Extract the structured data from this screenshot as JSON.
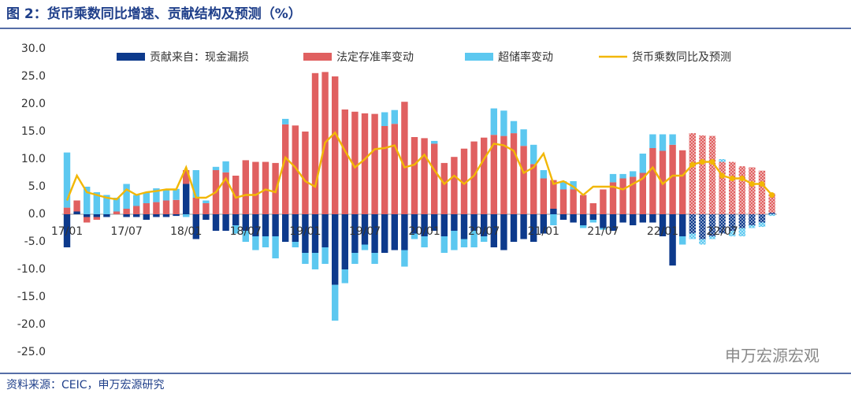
{
  "title": "图 2：货币乘数同比增速、贡献结构及预测（%）",
  "source": "资料来源：CEIC，申万宏源研究",
  "watermark": "申万宏源宏观",
  "chart_data": {
    "type": "bar",
    "categories": [
      "17/01",
      null,
      null,
      null,
      null,
      null,
      "17/07",
      null,
      null,
      null,
      null,
      null,
      "18/01",
      null,
      null,
      null,
      null,
      null,
      "18/07",
      null,
      null,
      null,
      null,
      null,
      "19/01",
      null,
      null,
      null,
      null,
      null,
      "19/07",
      null,
      null,
      null,
      null,
      null,
      "20/01",
      null,
      null,
      null,
      null,
      null,
      "20/07",
      null,
      null,
      null,
      null,
      null,
      "21/01",
      null,
      null,
      null,
      null,
      null,
      "21/07",
      null,
      null,
      null,
      null,
      null,
      "22/01",
      null,
      null,
      null,
      null,
      null,
      "22/07",
      null,
      null,
      null,
      null,
      null
    ],
    "forecast_from": 63,
    "series": [
      {
        "name": "贡献来自：现金漏损",
        "type": "bar",
        "color": "#0d3a8c",
        "values": [
          -6,
          0.5,
          -0.5,
          -0.5,
          -0.5,
          0,
          -0.5,
          -0.5,
          -1,
          -0.5,
          -0.5,
          -0.3,
          5.5,
          -4.5,
          -1,
          -3,
          -3,
          -2,
          -3,
          -4,
          -4,
          -4,
          -5,
          -5,
          -7,
          -7,
          -6,
          -12.8,
          -10,
          -7,
          -5.5,
          -7,
          -7,
          -6.5,
          -6.5,
          -3.5,
          -4,
          -3,
          -4,
          -3,
          -4.5,
          -3,
          -4,
          -6,
          -6.5,
          -5,
          -4.5,
          -5,
          -3.5,
          1,
          -1,
          -1.5,
          -2,
          -1,
          -2.5,
          -3,
          -1.5,
          -2,
          -1.5,
          -1.5,
          -4,
          -9.3,
          -4,
          -3.5,
          -4.5,
          -4,
          -3.5,
          -3,
          -2.5,
          -2,
          -1.5,
          0.3
        ]
      },
      {
        "name": "法定存准率变动",
        "type": "bar",
        "color": "#e06060",
        "values": [
          1.2,
          2,
          -1,
          -0.5,
          0,
          0.5,
          1,
          1.5,
          2,
          2.2,
          2.5,
          2.6,
          2.5,
          3,
          2,
          8,
          7.6,
          7,
          9.8,
          9.5,
          9.5,
          9.3,
          16.3,
          16.1,
          15,
          25.6,
          25.8,
          25,
          19,
          18.6,
          18.3,
          18.2,
          16,
          16.4,
          20.4,
          14,
          13.8,
          12.8,
          9.3,
          10.4,
          11.9,
          13.2,
          13.9,
          14.4,
          14.2,
          14.7,
          12.4,
          9.1,
          6.5,
          5.2,
          4.5,
          4.5,
          3.5,
          2,
          4.5,
          5.8,
          6.5,
          6.8,
          7.5,
          12,
          11.5,
          12.6,
          11.6,
          14.7,
          14.3,
          14.2,
          9.5,
          9.5,
          8.7,
          8.5,
          7.9,
          3.5
        ]
      },
      {
        "name": "超储率变动",
        "type": "bar",
        "color": "#5cc8f0",
        "values": [
          10,
          0,
          5,
          4,
          3.5,
          2.5,
          4.5,
          2,
          2,
          2.5,
          2,
          2,
          -0.5,
          5,
          0.5,
          0.6,
          2,
          -1.5,
          -2,
          -2.5,
          -2,
          -4,
          1,
          -1,
          -2,
          -3,
          -3,
          -6.5,
          -2.5,
          -2,
          -1,
          -2,
          2.5,
          2.5,
          -3,
          -1,
          -2,
          0.5,
          -3,
          -3.5,
          -1.5,
          -3,
          -1,
          4.8,
          4.6,
          2.2,
          3,
          3.5,
          1.5,
          -2,
          1.5,
          1.5,
          -0.5,
          -0.5,
          -0.3,
          1.5,
          0.8,
          1,
          3.5,
          2.5,
          3,
          1.9,
          -1.5,
          -1,
          -1,
          -0.5,
          0.5,
          -1,
          -1.5,
          -0.5,
          -0.8,
          -0.3
        ]
      },
      {
        "name": "货币乘数同比及预测",
        "type": "line",
        "color": "#f2b705",
        "values": [
          2.5,
          7,
          4,
          3.5,
          3,
          2.7,
          4.5,
          3.5,
          4,
          4.2,
          4.5,
          4.5,
          8.5,
          3,
          3,
          4,
          6.5,
          3,
          3.5,
          3.5,
          4.5,
          4,
          10.3,
          8.5,
          6,
          5,
          13,
          14.8,
          11.5,
          8.5,
          10,
          11.8,
          12,
          12.5,
          8.5,
          9,
          10.8,
          8,
          5.5,
          7,
          5.5,
          7,
          10,
          12.8,
          12.5,
          11.5,
          7.5,
          8.5,
          11,
          5.5,
          6,
          5,
          3.5,
          5,
          5,
          5,
          4.5,
          5.5,
          6.5,
          8.5,
          5.5,
          7,
          7,
          9,
          9.5,
          9.5,
          7,
          6.5,
          6.5,
          5.5,
          5.5,
          3.5
        ]
      }
    ],
    "ylim": [
      -25,
      30
    ],
    "yticks": [
      {
        "value": 30,
        "label": "30.0"
      },
      {
        "value": 25,
        "label": "25.0"
      },
      {
        "value": 20,
        "label": "20.0"
      },
      {
        "value": 15,
        "label": "15.0"
      },
      {
        "value": 10,
        "label": "10.0"
      },
      {
        "value": 5,
        "label": "5.0"
      },
      {
        "value": 0,
        "label": "0.0"
      },
      {
        "value": -5,
        "label": "-5.0"
      },
      {
        "value": -10,
        "label": "-10.0"
      },
      {
        "value": -15,
        "label": "-15.0"
      },
      {
        "value": -20,
        "label": "-20.0"
      },
      {
        "value": -25,
        "label": "-25.0"
      }
    ]
  }
}
